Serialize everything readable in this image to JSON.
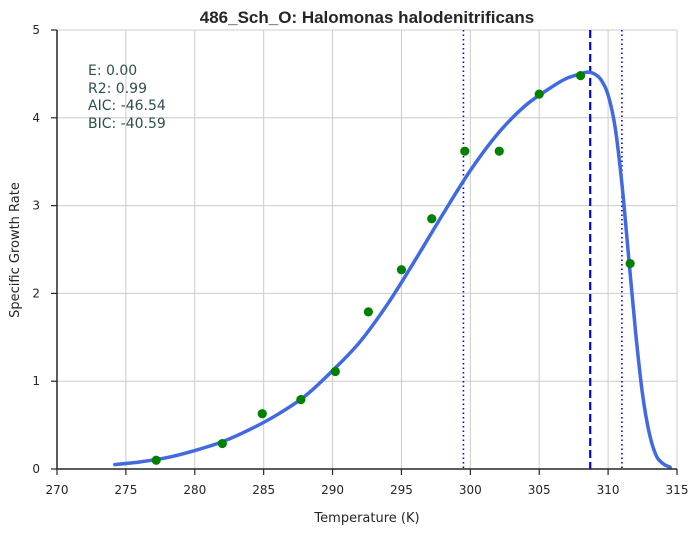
{
  "chart_data": {
    "type": "line",
    "title": "486_Sch_O: Halomonas halodenitrificans",
    "xlabel": "Temperature (K)",
    "ylabel": "Specific Growth Rate",
    "xlim": [
      270,
      315
    ],
    "ylim": [
      0,
      5
    ],
    "x_ticks": [
      270,
      275,
      280,
      285,
      290,
      295,
      300,
      305,
      310,
      315
    ],
    "y_ticks": [
      0,
      1,
      2,
      3,
      4,
      5
    ],
    "grid": true,
    "stats": [
      "E:  0.00",
      "R2:  0.99",
      "AIC: -46.54",
      "BIC: -40.59"
    ],
    "colors": {
      "curve": "#4169e1",
      "points": "#008000",
      "vlines": "#0000ff",
      "grid": "#cccccc",
      "axis": "#262626"
    },
    "points": {
      "x": [
        277.2,
        282.0,
        284.9,
        287.7,
        290.2,
        292.6,
        295.0,
        297.2,
        299.6,
        302.1,
        305.0,
        308.0,
        311.6
      ],
      "y": [
        0.1,
        0.29,
        0.63,
        0.79,
        1.11,
        1.79,
        2.27,
        2.85,
        3.62,
        3.62,
        4.27,
        4.48,
        2.34
      ]
    },
    "fit_curve": {
      "x": [
        274.2,
        276.0,
        278.0,
        280.0,
        282.0,
        284.0,
        286.0,
        288.0,
        290.0,
        292.0,
        294.0,
        296.0,
        298.0,
        300.0,
        302.0,
        304.0,
        306.0,
        307.0,
        308.0,
        308.5,
        309.0,
        309.5,
        310.0,
        310.5,
        311.0,
        311.5,
        312.0,
        312.5,
        313.0,
        313.5,
        314.0,
        314.5
      ],
      "y": [
        0.05,
        0.08,
        0.13,
        0.21,
        0.31,
        0.45,
        0.62,
        0.83,
        1.12,
        1.45,
        1.88,
        2.38,
        2.9,
        3.4,
        3.82,
        4.14,
        4.36,
        4.45,
        4.5,
        4.52,
        4.5,
        4.43,
        4.26,
        3.9,
        3.25,
        2.4,
        1.55,
        0.85,
        0.4,
        0.15,
        0.06,
        0.02
      ]
    },
    "dashed_vlines": [
      308.7
    ],
    "dotted_vlines": [
      299.5,
      311.0
    ]
  }
}
